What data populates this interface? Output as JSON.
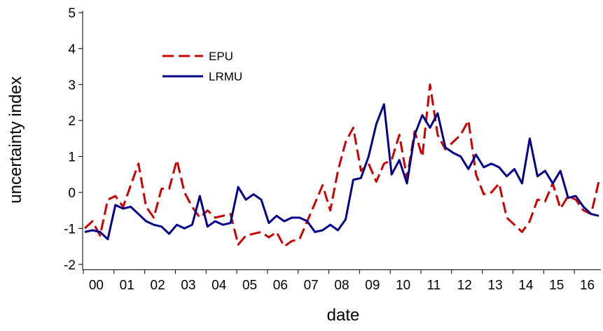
{
  "chart_data": {
    "type": "line",
    "x_label": "date",
    "y_label": "uncertainty index",
    "categories": [
      null,
      "00",
      null,
      null,
      null,
      "01",
      null,
      null,
      null,
      "02",
      null,
      null,
      null,
      "03",
      null,
      null,
      null,
      "04",
      null,
      null,
      null,
      "05",
      null,
      null,
      null,
      "06",
      null,
      null,
      null,
      "07",
      null,
      null,
      null,
      "08",
      null,
      null,
      null,
      "09",
      null,
      null,
      null,
      "10",
      null,
      null,
      null,
      "11",
      null,
      null,
      null,
      "12",
      null,
      null,
      null,
      "13",
      null,
      null,
      null,
      "14",
      null,
      null,
      null,
      "15",
      null,
      null,
      null,
      "16",
      null,
      null
    ],
    "series": [
      {
        "name": "EPU",
        "color": "#cc0000",
        "dashed": true,
        "values": [
          -1.0,
          -0.8,
          -1.2,
          -0.2,
          -0.1,
          -0.4,
          0.2,
          0.8,
          -0.4,
          -0.7,
          0.1,
          0.1,
          0.9,
          0.0,
          -0.4,
          -0.7,
          -0.5,
          -0.7,
          -0.65,
          -0.6,
          -1.45,
          -1.2,
          -1.15,
          -1.1,
          -1.25,
          -1.1,
          -1.5,
          -1.35,
          -1.3,
          -0.8,
          -0.3,
          0.2,
          -0.5,
          0.6,
          1.4,
          1.8,
          0.6,
          0.8,
          0.3,
          0.8,
          0.9,
          1.6,
          0.4,
          1.7,
          1.0,
          3.0,
          1.6,
          1.2,
          1.4,
          1.6,
          2.0,
          0.5,
          -0.05,
          0.0,
          0.25,
          -0.7,
          -0.9,
          -1.1,
          -0.8,
          -0.2,
          -0.25,
          0.25,
          -0.45,
          -0.1,
          -0.2,
          -0.5,
          -0.6,
          0.3
        ]
      },
      {
        "name": "LRMU",
        "color": "#00008b",
        "dashed": false,
        "values": [
          -1.1,
          -1.05,
          -1.1,
          -1.3,
          -0.35,
          -0.45,
          -0.4,
          -0.6,
          -0.8,
          -0.9,
          -0.95,
          -1.15,
          -0.9,
          -1.0,
          -0.9,
          -0.1,
          -0.95,
          -0.8,
          -0.9,
          -0.85,
          0.15,
          -0.2,
          -0.05,
          -0.2,
          -0.85,
          -0.65,
          -0.8,
          -0.7,
          -0.7,
          -0.8,
          -1.1,
          -1.05,
          -0.9,
          -1.05,
          -0.75,
          0.35,
          0.4,
          1.0,
          1.9,
          2.45,
          0.5,
          0.9,
          0.25,
          1.6,
          2.15,
          1.8,
          2.2,
          1.25,
          1.1,
          1.0,
          0.65,
          1.05,
          0.7,
          0.8,
          0.7,
          0.45,
          0.65,
          0.25,
          1.5,
          0.45,
          0.6,
          0.25,
          0.6,
          -0.15,
          -0.1,
          -0.4,
          -0.6,
          -0.65
        ]
      }
    ],
    "ylim": [
      -2.15,
      5.05
    ],
    "yticks": [
      -2,
      -1,
      0,
      1,
      2,
      3,
      4,
      5
    ],
    "grid": false,
    "legend": "upper left"
  }
}
